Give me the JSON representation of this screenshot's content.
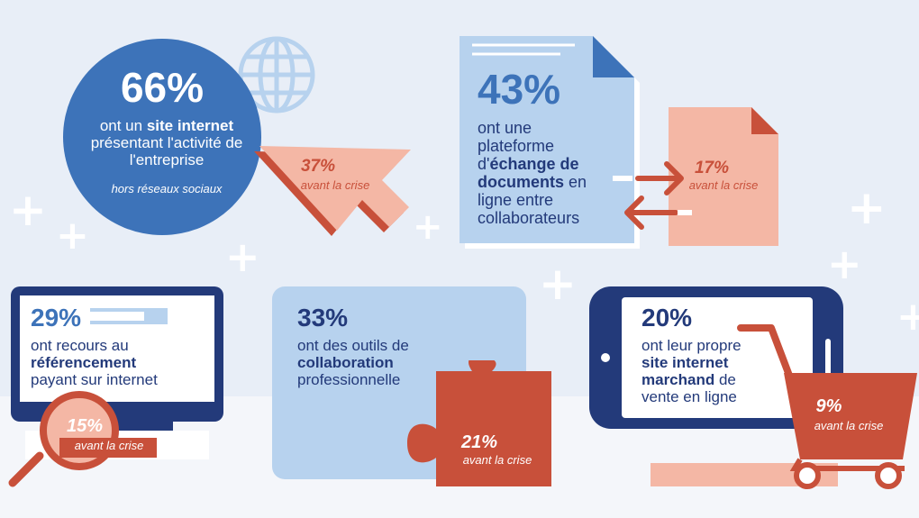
{
  "stats": [
    {
      "id": "website",
      "value": "66%",
      "text_pre": "ont un ",
      "text_bold": "site internet",
      "text_post": "présentant l'activité de l'entreprise",
      "note": "hors réseaux sociaux",
      "before_value": "37%",
      "before_label": "avant la crise"
    },
    {
      "id": "platform",
      "value": "43%",
      "text_pre": "ont une plateforme d'",
      "text_bold": "échange de documents",
      "text_post": " en ligne entre collaborateurs",
      "before_value": "17%",
      "before_label": "avant la crise"
    },
    {
      "id": "seo",
      "value": "29%",
      "text_pre": "ont recours au",
      "text_bold": "référencement",
      "text_post": "payant sur internet",
      "before_value": "15%",
      "before_label": "avant la crise"
    },
    {
      "id": "collab",
      "value": "33%",
      "text_pre": "ont des outils de",
      "text_bold": "collaboration",
      "text_post": "professionnelle",
      "before_value": "21%",
      "before_label": "avant la crise"
    },
    {
      "id": "ecommerce",
      "value": "20%",
      "text_pre": "ont leur propre",
      "text_bold": "site internet marchand",
      "text_post": " de vente en ligne",
      "before_value": "9%",
      "before_label": "avant la crise"
    }
  ],
  "colors": {
    "navy": "#233a7a",
    "blue": "#3d73b9",
    "light_blue": "#b7d2ee",
    "salmon": "#f4b7a5",
    "red": "#c8503a",
    "background": "#e8eef7"
  }
}
